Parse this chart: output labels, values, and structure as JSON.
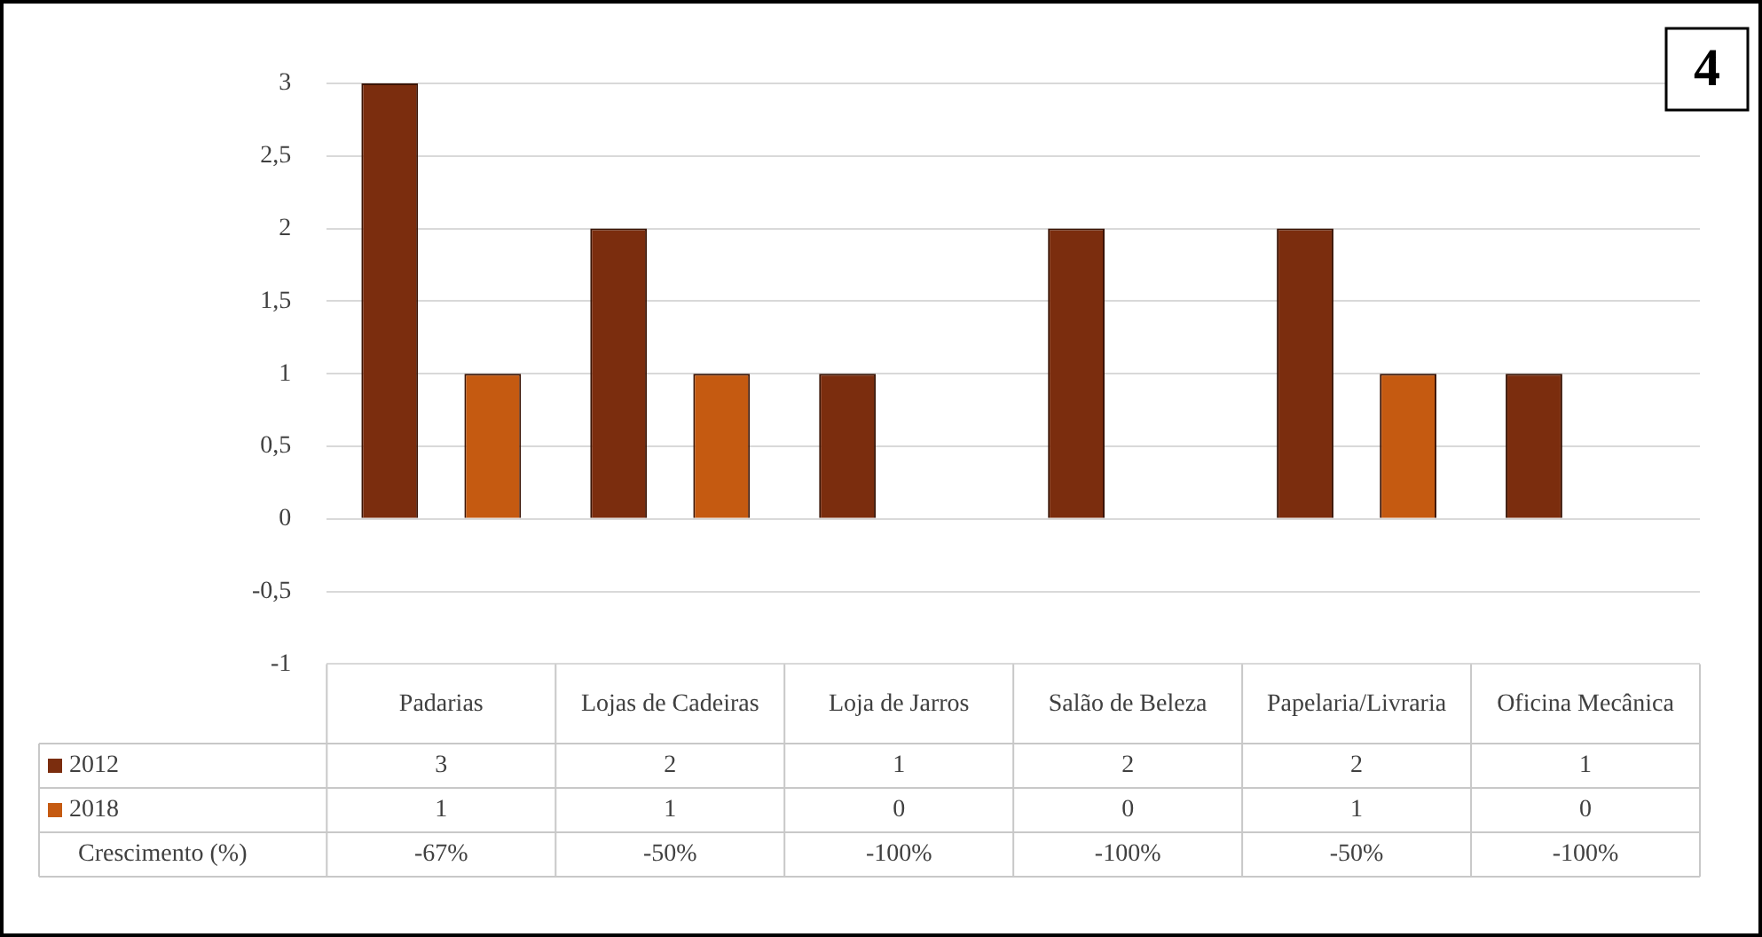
{
  "chart_data": {
    "type": "bar",
    "categories": [
      "Padarias",
      "Lojas de Cadeiras",
      "Loja de Jarros",
      "Salão de Beleza",
      "Papelaria/Livraria",
      "Oficina Mecânica"
    ],
    "series": [
      {
        "name": "2012",
        "color": "#7b2d0e",
        "values": [
          3,
          2,
          1,
          2,
          2,
          1
        ]
      },
      {
        "name": "2018",
        "color": "#c55a11",
        "values": [
          1,
          1,
          0,
          0,
          1,
          0
        ]
      }
    ],
    "ylim": [
      -1,
      3
    ],
    "yticks": [
      {
        "value": -1,
        "label": "-1"
      },
      {
        "value": -0.5,
        "label": "-0,5"
      },
      {
        "value": 0,
        "label": "0"
      },
      {
        "value": 0.5,
        "label": "0,5"
      },
      {
        "value": 1,
        "label": "1"
      },
      {
        "value": 1.5,
        "label": "1,5"
      },
      {
        "value": 2,
        "label": "2"
      },
      {
        "value": 2.5,
        "label": "2,5"
      },
      {
        "value": 3,
        "label": "3"
      }
    ],
    "grid": "y",
    "legend": "bottom",
    "data_labels": true,
    "annotations": [
      "4",
      "Crescimento (%)",
      "-67%",
      "-50%",
      "-100%",
      "-100%",
      "-50%",
      "-100%"
    ]
  }
}
